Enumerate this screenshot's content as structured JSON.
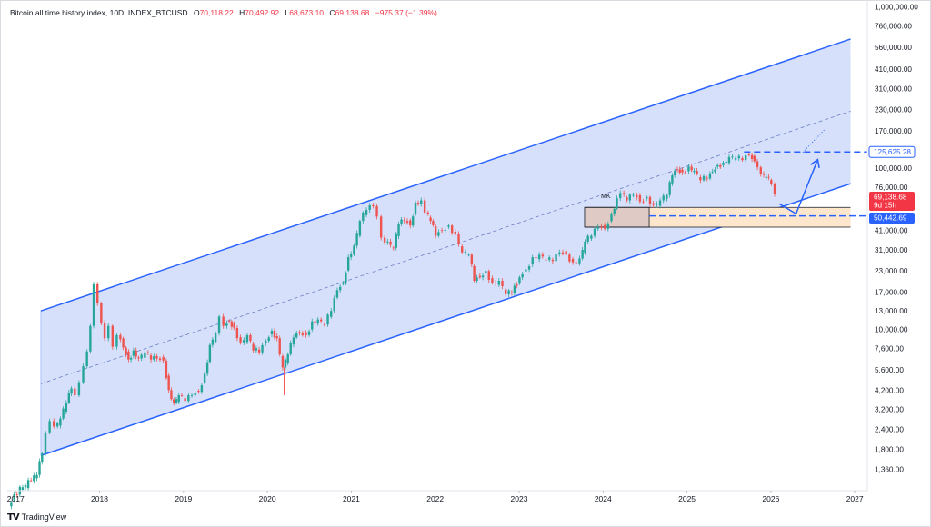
{
  "header": {
    "title": "Bitcoin all time history index, 10D, INDEX_BTCUSD",
    "open_label": "O",
    "open": "70,118.22",
    "high_label": "H",
    "high": "70,492.92",
    "low_label": "L",
    "low": "68,673.10",
    "close_label": "C",
    "close": "69,138.68",
    "change": "−975.37 (−1.39%)"
  },
  "footer": {
    "logo": "TV",
    "brand": "TradingView"
  },
  "price_labels": {
    "current": "69,138.68",
    "countdown": "9d 15h",
    "target": "125,625.28",
    "support": "50,442.69"
  },
  "annotation": "MK",
  "colors": {
    "up": "#26a69a",
    "down": "#ef5350",
    "channel": "#2962ff",
    "channel_fill": "#d6e0fb",
    "target_label": "#2962ff",
    "current_label": "#f23645",
    "zone_fill": "#fde6cc",
    "box_fill": "#d8c3c3"
  },
  "chart_data": {
    "type": "candlestick",
    "title": "Bitcoin all time history index, 10D, INDEX_BTCUSD",
    "scale": "log",
    "x_tick_labels": [
      "2017",
      "2018",
      "2019",
      "2020",
      "2021",
      "2022",
      "2023",
      "2024",
      "2025",
      "2026",
      "2027"
    ],
    "y_tick_labels": [
      "1,000,000.00",
      "760,000.00",
      "560,000.00",
      "410,000.00",
      "310,000.00",
      "230,000.00",
      "170,000.00",
      "100,000.00",
      "76,000.00",
      "58,000.00",
      "41,000.00",
      "31,000.00",
      "23,000.00",
      "17,000.00",
      "13,000.00",
      "10,000.00",
      "7,600.00",
      "5,600.00",
      "4,200.00",
      "3,200.00",
      "2,400.00",
      "1,800.00",
      "1,360.00"
    ],
    "y_tick_values": [
      1000000,
      760000,
      560000,
      410000,
      310000,
      230000,
      170000,
      100000,
      76000,
      58000,
      41000,
      31000,
      23000,
      17000,
      13000,
      10000,
      7600,
      5600,
      4200,
      3200,
      2400,
      1800,
      1360
    ],
    "ylim": [
      1000,
      1100000
    ],
    "xlim": [
      2016.9,
      2027.15
    ],
    "grid": false,
    "closes": [
      [
        2016.93,
        800
      ],
      [
        2017.0,
        950
      ],
      [
        2017.1,
        1050
      ],
      [
        2017.2,
        1150
      ],
      [
        2017.27,
        1250
      ],
      [
        2017.33,
        1700
      ],
      [
        2017.38,
        2300
      ],
      [
        2017.43,
        2700
      ],
      [
        2017.48,
        2500
      ],
      [
        2017.55,
        2800
      ],
      [
        2017.62,
        3500
      ],
      [
        2017.68,
        4300
      ],
      [
        2017.73,
        3900
      ],
      [
        2017.78,
        4700
      ],
      [
        2017.83,
        5900
      ],
      [
        2017.87,
        7300
      ],
      [
        2017.91,
        10500
      ],
      [
        2017.95,
        19000
      ],
      [
        2018.0,
        14500
      ],
      [
        2018.04,
        11000
      ],
      [
        2018.08,
        8800
      ],
      [
        2018.13,
        10500
      ],
      [
        2018.18,
        7800
      ],
      [
        2018.23,
        9200
      ],
      [
        2018.3,
        7700
      ],
      [
        2018.36,
        6500
      ],
      [
        2018.42,
        7400
      ],
      [
        2018.48,
        6600
      ],
      [
        2018.56,
        7200
      ],
      [
        2018.63,
        6500
      ],
      [
        2018.7,
        6600
      ],
      [
        2018.78,
        6400
      ],
      [
        2018.84,
        4200
      ],
      [
        2018.9,
        3500
      ],
      [
        2018.96,
        3900
      ],
      [
        2019.04,
        3600
      ],
      [
        2019.12,
        3900
      ],
      [
        2019.2,
        4100
      ],
      [
        2019.27,
        5300
      ],
      [
        2019.33,
        8000
      ],
      [
        2019.4,
        9500
      ],
      [
        2019.45,
        12000
      ],
      [
        2019.5,
        10500
      ],
      [
        2019.56,
        11200
      ],
      [
        2019.62,
        10200
      ],
      [
        2019.7,
        8300
      ],
      [
        2019.78,
        9200
      ],
      [
        2019.85,
        7400
      ],
      [
        2019.92,
        7200
      ],
      [
        2020.0,
        8500
      ],
      [
        2020.07,
        9800
      ],
      [
        2020.13,
        8800
      ],
      [
        2020.2,
        5800
      ],
      [
        2020.26,
        7000
      ],
      [
        2020.33,
        8900
      ],
      [
        2020.4,
        9500
      ],
      [
        2020.48,
        9200
      ],
      [
        2020.55,
        11200
      ],
      [
        2020.62,
        11500
      ],
      [
        2020.7,
        10700
      ],
      [
        2020.78,
        13000
      ],
      [
        2020.85,
        17500
      ],
      [
        2020.92,
        19500
      ],
      [
        2020.98,
        28000
      ],
      [
        2021.05,
        33000
      ],
      [
        2021.12,
        47000
      ],
      [
        2021.2,
        55000
      ],
      [
        2021.28,
        58000
      ],
      [
        2021.33,
        50000
      ],
      [
        2021.38,
        37000
      ],
      [
        2021.45,
        35000
      ],
      [
        2021.52,
        32000
      ],
      [
        2021.58,
        45000
      ],
      [
        2021.65,
        47000
      ],
      [
        2021.72,
        44000
      ],
      [
        2021.78,
        61000
      ],
      [
        2021.85,
        63000
      ],
      [
        2021.9,
        53000
      ],
      [
        2021.96,
        47000
      ],
      [
        2022.02,
        38000
      ],
      [
        2022.1,
        41000
      ],
      [
        2022.18,
        44000
      ],
      [
        2022.26,
        39000
      ],
      [
        2022.34,
        30000
      ],
      [
        2022.42,
        29000
      ],
      [
        2022.48,
        20000
      ],
      [
        2022.55,
        21000
      ],
      [
        2022.62,
        23000
      ],
      [
        2022.7,
        19500
      ],
      [
        2022.78,
        20000
      ],
      [
        2022.86,
        16500
      ],
      [
        2022.93,
        16800
      ],
      [
        2023.02,
        21000
      ],
      [
        2023.1,
        23500
      ],
      [
        2023.18,
        28000
      ],
      [
        2023.26,
        29000
      ],
      [
        2023.34,
        27000
      ],
      [
        2023.42,
        26500
      ],
      [
        2023.5,
        30000
      ],
      [
        2023.58,
        29000
      ],
      [
        2023.66,
        26000
      ],
      [
        2023.74,
        27500
      ],
      [
        2023.8,
        35000
      ],
      [
        2023.88,
        38000
      ],
      [
        2023.96,
        43000
      ],
      [
        2024.04,
        42000
      ],
      [
        2024.12,
        52000
      ],
      [
        2024.18,
        65000
      ],
      [
        2024.23,
        70000
      ],
      [
        2024.3,
        63000
      ],
      [
        2024.38,
        68000
      ],
      [
        2024.46,
        62000
      ],
      [
        2024.54,
        66000
      ],
      [
        2024.62,
        59000
      ],
      [
        2024.7,
        63000
      ],
      [
        2024.78,
        68000
      ],
      [
        2024.84,
        90000
      ],
      [
        2024.9,
        98000
      ],
      [
        2024.96,
        94000
      ],
      [
        2025.04,
        102000
      ],
      [
        2025.1,
        96000
      ],
      [
        2025.18,
        84000
      ],
      [
        2025.26,
        86000
      ],
      [
        2025.32,
        95000
      ],
      [
        2025.38,
        104000
      ],
      [
        2025.45,
        108000
      ],
      [
        2025.52,
        117000
      ],
      [
        2025.6,
        115000
      ],
      [
        2025.68,
        112000
      ],
      [
        2025.76,
        120000
      ],
      [
        2025.82,
        110000
      ],
      [
        2025.86,
        101000
      ],
      [
        2025.9,
        92000
      ],
      [
        2025.96,
        88000
      ],
      [
        2026.02,
        80000
      ],
      [
        2026.07,
        69138.68
      ]
    ],
    "channel_upper": [
      [
        2017.3,
        13000
      ],
      [
        2026.95,
        630000
      ]
    ],
    "channel_lower": [
      [
        2017.3,
        1650
      ],
      [
        2026.95,
        80000
      ]
    ],
    "channel_mid": [
      [
        2017.3,
        4600
      ],
      [
        2026.95,
        225000
      ]
    ],
    "horizontal_lines": [
      125625.28,
      50442.69,
      69138.68
    ],
    "zone_box": {
      "x": [
        2023.78,
        2026.95
      ],
      "y": [
        43000,
        57000
      ]
    },
    "projection": [
      [
        2026.1,
        60000
      ],
      [
        2026.3,
        52000
      ],
      [
        2026.55,
        110000
      ]
    ]
  }
}
